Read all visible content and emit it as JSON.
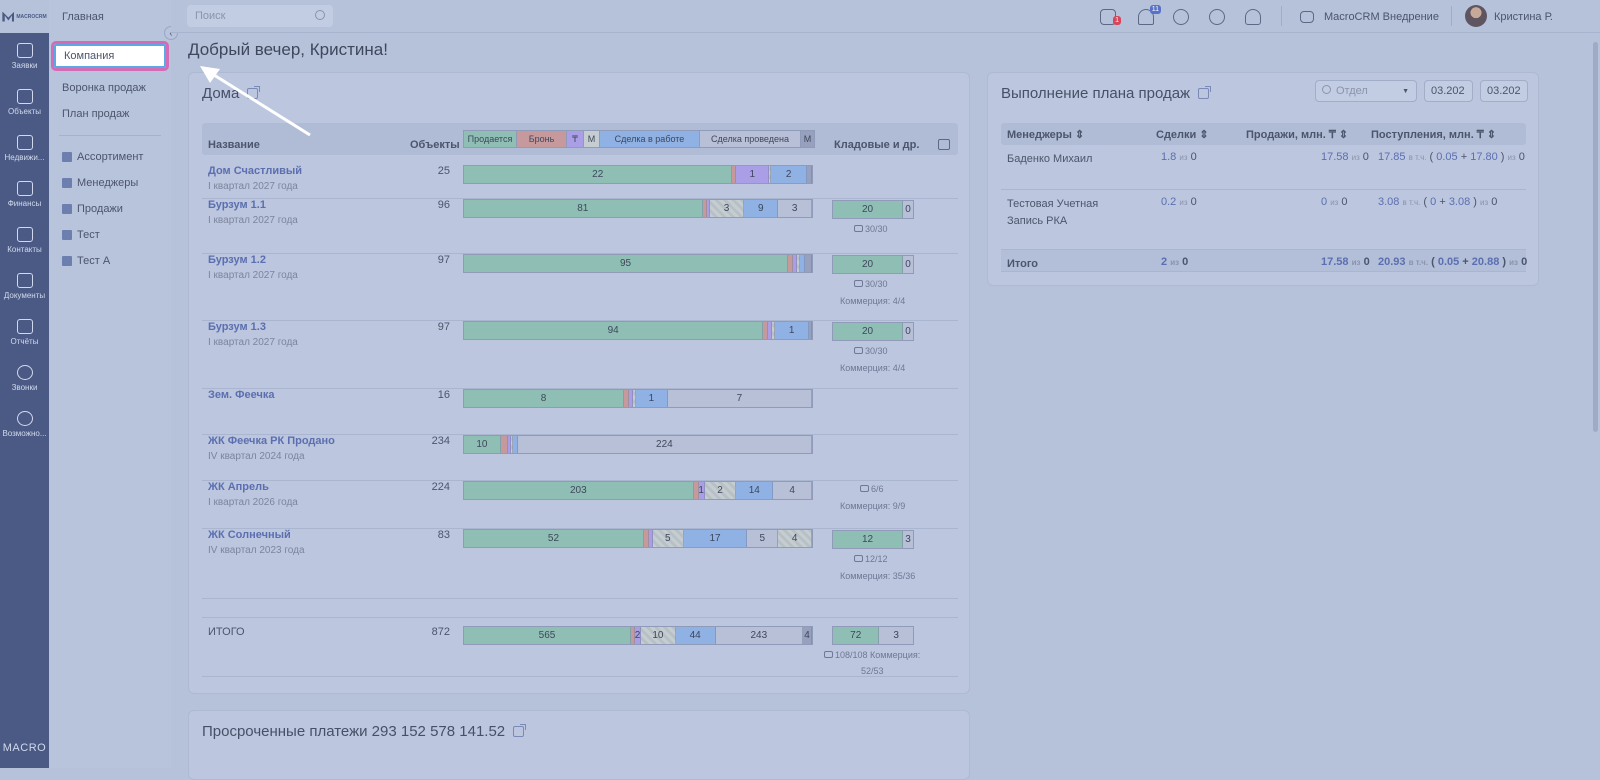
{
  "rail": {
    "logo_text": "MACROCRM",
    "items": [
      "Заявки",
      "Объекты",
      "Недвижи...",
      "Финансы",
      "Контакты",
      "Документы",
      "Отчёты",
      "Звонки",
      "Возможно..."
    ],
    "brand": "MACRO"
  },
  "submenu": {
    "head": "Главная",
    "items": [
      "Компания",
      "Воронка продаж",
      "План продаж"
    ],
    "reports": [
      "Ассортимент",
      "Менеджеры",
      "Продажи",
      "Тест",
      "Тест А"
    ]
  },
  "topbar": {
    "search_placeholder": "Поиск",
    "calendar_badge": "1",
    "bell_badge": "11",
    "project": "MacroCRM Внедрение",
    "user": "Кристина Р."
  },
  "greeting": "Добрый вечер, Кристина!",
  "houses": {
    "title": "Дома",
    "col_name": "Название",
    "col_objects": "Объекты",
    "col_storage": "Кладовые и др.",
    "legend": [
      "Продается",
      "Бронь",
      "₸",
      "М",
      "Сделка в работе",
      "Сделка проведена",
      "М"
    ],
    "rows": [
      {
        "name": "Дом Счастливый",
        "sub": "I квартал 2027 года",
        "count": "25",
        "v": [
          "22",
          "",
          "1",
          "",
          "2",
          ""
        ]
      },
      {
        "name": "Бурзум 1.1",
        "sub": "I квартал 2027 года",
        "count": "96",
        "v": [
          "81",
          "",
          "",
          "3",
          "9",
          "3"
        ],
        "store": [
          "20",
          "0"
        ],
        "note1": "30/30",
        "note2": ""
      },
      {
        "name": "Бурзум 1.2",
        "sub": "I квартал 2027 года",
        "count": "97",
        "v": [
          "95",
          "",
          "",
          "",
          "",
          ""
        ],
        "store": [
          "20",
          "0"
        ],
        "note1": "30/30",
        "note2": "Коммерция: 4/4"
      },
      {
        "name": "Бурзум 1.3",
        "sub": "I квартал 2027 года",
        "count": "97",
        "v": [
          "94",
          "",
          "",
          "",
          "1",
          ""
        ],
        "store": [
          "20",
          "0"
        ],
        "note1": "30/30",
        "note2": "Коммерция: 4/4"
      },
      {
        "name": "Зем. Феечка",
        "sub": "",
        "count": "16",
        "v": [
          "8",
          "",
          "",
          "",
          "1",
          "7"
        ]
      },
      {
        "name": "ЖК Феечка РК Продано",
        "sub": "IV квартал 2024 года",
        "count": "234",
        "v": [
          "10",
          "",
          "",
          "",
          "",
          "224"
        ]
      },
      {
        "name": "ЖК Апрель",
        "sub": "I квартал 2026 года",
        "count": "224",
        "v": [
          "203",
          "",
          "1",
          "2",
          "14",
          "4"
        ],
        "note1": "6/6",
        "note2": "Коммерция: 9/9"
      },
      {
        "name": "ЖК Солнечный",
        "sub": "IV квартал 2023 года",
        "count": "83",
        "v": [
          "52",
          "",
          "",
          "5",
          "17",
          "5",
          "4"
        ],
        "store": [
          "12",
          "3"
        ],
        "note1": "12/12",
        "note2": "Коммерция: 35/36"
      }
    ],
    "total": {
      "name": "ИТОГО",
      "count": "872",
      "v": [
        "565",
        "",
        "2",
        "10",
        "44",
        "243",
        "4"
      ],
      "store": [
        "72",
        "3"
      ],
      "note1": "108/108 Коммерция:",
      "note2": "52/53"
    }
  },
  "sales_plan": {
    "title": "Выполнение плана продаж",
    "filter_placeholder": "Отдел",
    "date1": "03.202",
    "date2": "03.202",
    "cols": [
      "Менеджеры",
      "Сделки",
      "Продажи, млн. ₸",
      "Поступления, млн. ₸"
    ],
    "of": "из",
    "incl": "в т.ч.",
    "rows": [
      {
        "name": "Баденко Михаил",
        "deals": "1.8",
        "deals_of": "0",
        "sales": "17.58",
        "sales_of": "0",
        "income": "17.85",
        "a": "0.05",
        "b": "17.80",
        "income_of": "0"
      },
      {
        "name": "Тестовая Учетная Запись РКА",
        "deals": "0.2",
        "deals_of": "0",
        "sales": "0",
        "sales_of": "0",
        "income": "3.08",
        "a": "0",
        "b": "3.08",
        "income_of": "0"
      }
    ],
    "total": {
      "name": "Итого",
      "deals": "2",
      "deals_of": "0",
      "sales": "17.58",
      "sales_of": "0",
      "income": "20.93",
      "a": "0.05",
      "b": "20.88",
      "income_of": "0"
    }
  },
  "overdue": {
    "title": "Просроченные платежи 293 152 578 141.52"
  }
}
